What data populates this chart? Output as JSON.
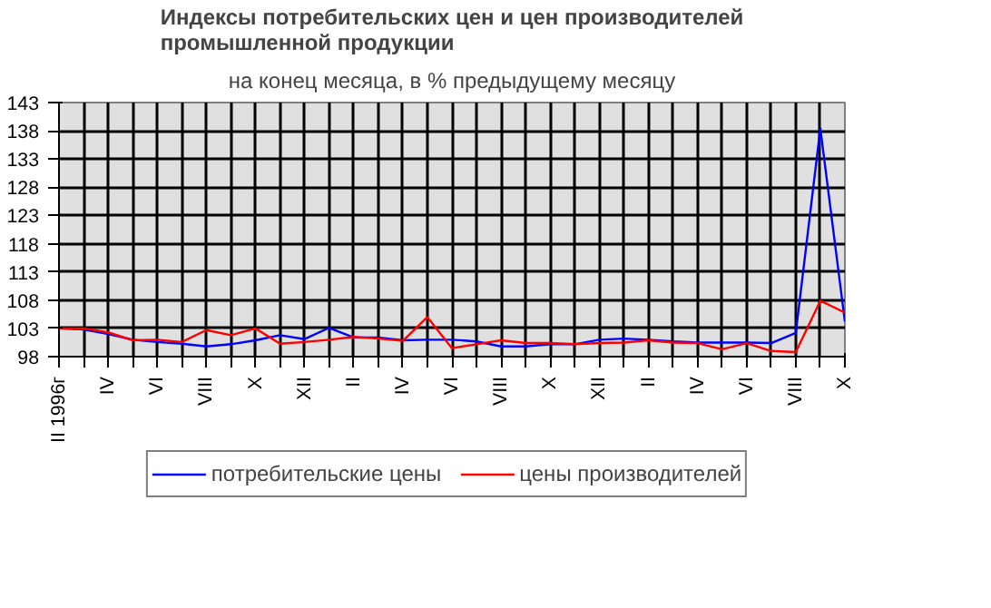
{
  "chart_data": {
    "type": "line",
    "title": "Индексы потребительских цен и цен производителей\nпромышленной продукции",
    "subtitle": "на конец месяца, в % предыдущему месяцу",
    "categories": [
      "II 1996г",
      null,
      "IV",
      null,
      "VI",
      null,
      "VIII",
      null,
      "X",
      null,
      "XII",
      null,
      "II",
      null,
      "IV",
      null,
      "VI",
      null,
      "VIII",
      null,
      "X",
      null,
      "XII",
      null,
      "II",
      null,
      "IV",
      null,
      "VI",
      null,
      "VIII",
      null,
      "X"
    ],
    "series": [
      {
        "name": "потребительские цены",
        "color": "#0000ff",
        "values": [
          103.0,
          102.8,
          102.0,
          101.0,
          100.6,
          100.3,
          99.8,
          100.2,
          100.9,
          101.8,
          101.1,
          103.1,
          101.4,
          101.4,
          100.9,
          101.0,
          101.0,
          100.7,
          99.8,
          99.8,
          100.2,
          100.2,
          101.0,
          101.2,
          101.0,
          100.7,
          100.5,
          100.5,
          100.5,
          100.4,
          102.2,
          138.4,
          104.2
        ]
      },
      {
        "name": "цены производителей",
        "color": "#ff0000",
        "values": [
          103.0,
          103.0,
          102.3,
          100.9,
          101.0,
          100.6,
          102.7,
          101.8,
          103.0,
          100.3,
          100.6,
          101.0,
          101.5,
          101.2,
          100.8,
          105.0,
          99.5,
          100.2,
          100.9,
          100.4,
          100.4,
          100.2,
          100.4,
          100.5,
          100.9,
          100.5,
          100.4,
          99.3,
          100.4,
          99.0,
          98.8,
          107.9,
          105.8
        ]
      }
    ],
    "ylim": [
      98,
      143
    ],
    "yticks": [
      98,
      103,
      108,
      113,
      118,
      123,
      128,
      133,
      138,
      143
    ],
    "grid": true,
    "legend": "bottom",
    "marker": "none",
    "line_style": "solid"
  }
}
